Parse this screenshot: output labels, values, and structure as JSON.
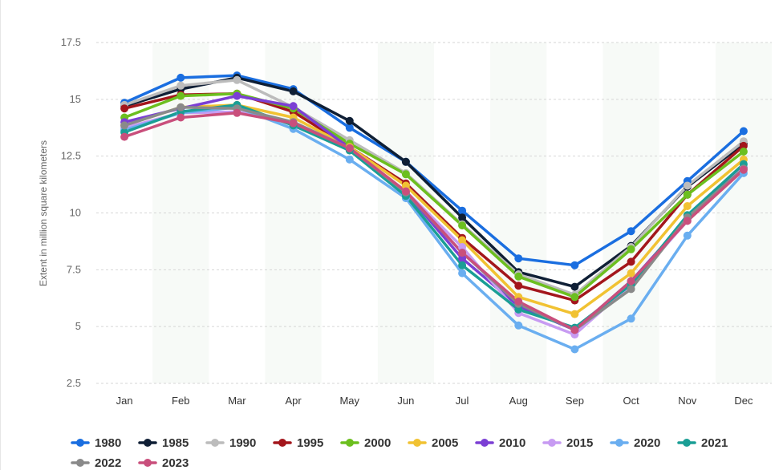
{
  "chart_data": {
    "type": "line",
    "title": "",
    "xlabel": "",
    "ylabel": "Extent in million square kilometers",
    "ylim": [
      2.5,
      17.5
    ],
    "yticks": [
      "2.5",
      "5",
      "7.5",
      "10",
      "12.5",
      "15",
      "17.5"
    ],
    "ytick_values": [
      2.5,
      5,
      7.5,
      10,
      12.5,
      15,
      17.5
    ],
    "categories": [
      "Jan",
      "Feb",
      "Mar",
      "Apr",
      "May",
      "Jun",
      "Jul",
      "Aug",
      "Sep",
      "Oct",
      "Nov",
      "Dec"
    ],
    "grid": true,
    "legend_position": "bottom-left",
    "series": [
      {
        "name": "1980",
        "color": "#1a6ee0",
        "values": [
          14.85,
          15.95,
          16.05,
          15.45,
          13.75,
          12.25,
          10.1,
          8.0,
          7.7,
          9.2,
          11.4,
          13.6
        ]
      },
      {
        "name": "1985",
        "color": "#0f1f35",
        "values": [
          14.7,
          15.45,
          15.95,
          15.35,
          14.05,
          12.25,
          9.8,
          7.4,
          6.75,
          8.55,
          11.15,
          13.05
        ]
      },
      {
        "name": "1990",
        "color": "#bcbcbc",
        "values": [
          14.75,
          15.6,
          15.85,
          14.65,
          13.2,
          11.75,
          9.5,
          7.3,
          6.4,
          8.5,
          11.2,
          13.15
        ]
      },
      {
        "name": "1995",
        "color": "#a3161c",
        "values": [
          14.6,
          15.2,
          15.25,
          14.45,
          12.9,
          11.3,
          8.9,
          6.8,
          6.15,
          7.85,
          10.8,
          12.95
        ]
      },
      {
        "name": "2000",
        "color": "#6cbf1f",
        "values": [
          14.2,
          15.15,
          15.25,
          14.6,
          13.05,
          11.7,
          9.45,
          7.2,
          6.3,
          8.4,
          10.8,
          12.7
        ]
      },
      {
        "name": "2005",
        "color": "#f1c232",
        "values": [
          13.85,
          14.65,
          14.75,
          14.2,
          12.9,
          11.2,
          8.8,
          6.3,
          5.55,
          7.35,
          10.3,
          12.35
        ]
      },
      {
        "name": "2010",
        "color": "#7b3fd4",
        "values": [
          14.0,
          14.6,
          15.15,
          14.7,
          12.85,
          10.9,
          8.0,
          5.9,
          4.85,
          7.0,
          9.75,
          12.0
        ]
      },
      {
        "name": "2015",
        "color": "#c79bf2",
        "values": [
          13.75,
          14.4,
          14.45,
          14.0,
          12.85,
          10.95,
          8.5,
          5.6,
          4.65,
          6.85,
          9.65,
          12.0
        ]
      },
      {
        "name": "2020",
        "color": "#6aaef0",
        "values": [
          13.65,
          14.4,
          14.65,
          13.7,
          12.35,
          10.65,
          7.35,
          5.05,
          4.0,
          5.35,
          9.0,
          11.75
        ]
      },
      {
        "name": "2021",
        "color": "#1a9e95",
        "values": [
          13.55,
          14.45,
          14.75,
          13.85,
          12.75,
          10.75,
          7.7,
          5.75,
          4.95,
          6.85,
          9.9,
          12.15
        ]
      },
      {
        "name": "2022",
        "color": "#8a8a8a",
        "values": [
          13.85,
          14.65,
          14.6,
          14.0,
          12.85,
          10.9,
          8.25,
          6.0,
          4.85,
          6.65,
          9.8,
          11.95
        ]
      },
      {
        "name": "2023",
        "color": "#c94f7c",
        "values": [
          13.35,
          14.2,
          14.4,
          13.95,
          12.85,
          10.95,
          8.25,
          6.1,
          4.85,
          7.0,
          9.65,
          11.9
        ]
      }
    ]
  }
}
